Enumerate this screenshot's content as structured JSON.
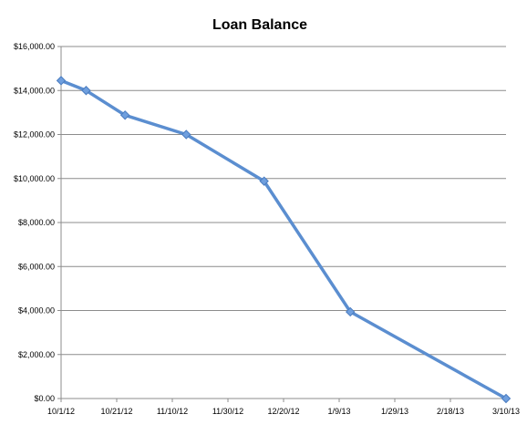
{
  "chart_data": {
    "type": "line",
    "title": "Loan Balance",
    "xlabel": "",
    "ylabel": "",
    "ylim": [
      0,
      16000
    ],
    "grid": "horizontal",
    "legend": "none",
    "y_tick_labels": [
      "$0.00",
      "$2,000.00",
      "$4,000.00",
      "$6,000.00",
      "$8,000.00",
      "$10,000.00",
      "$12,000.00",
      "$14,000.00",
      "$16,000.00"
    ],
    "x_tick_labels": [
      "10/1/12",
      "10/21/12",
      "11/10/12",
      "11/30/12",
      "12/20/12",
      "1/9/13",
      "1/29/13",
      "2/18/13",
      "3/10/13"
    ],
    "x_range": [
      "10/1/12",
      "3/10/13"
    ],
    "series": [
      {
        "color": "#5b8ed0",
        "points": [
          {
            "x": "10/1/12",
            "y": 14450
          },
          {
            "x": "10/10/12",
            "y": 14000
          },
          {
            "x": "10/24/12",
            "y": 12880
          },
          {
            "x": "11/15/12",
            "y": 12000
          },
          {
            "x": "12/13/12",
            "y": 9880
          },
          {
            "x": "1/13/13",
            "y": 3940
          },
          {
            "x": "3/10/13",
            "y": 0
          }
        ]
      }
    ]
  }
}
